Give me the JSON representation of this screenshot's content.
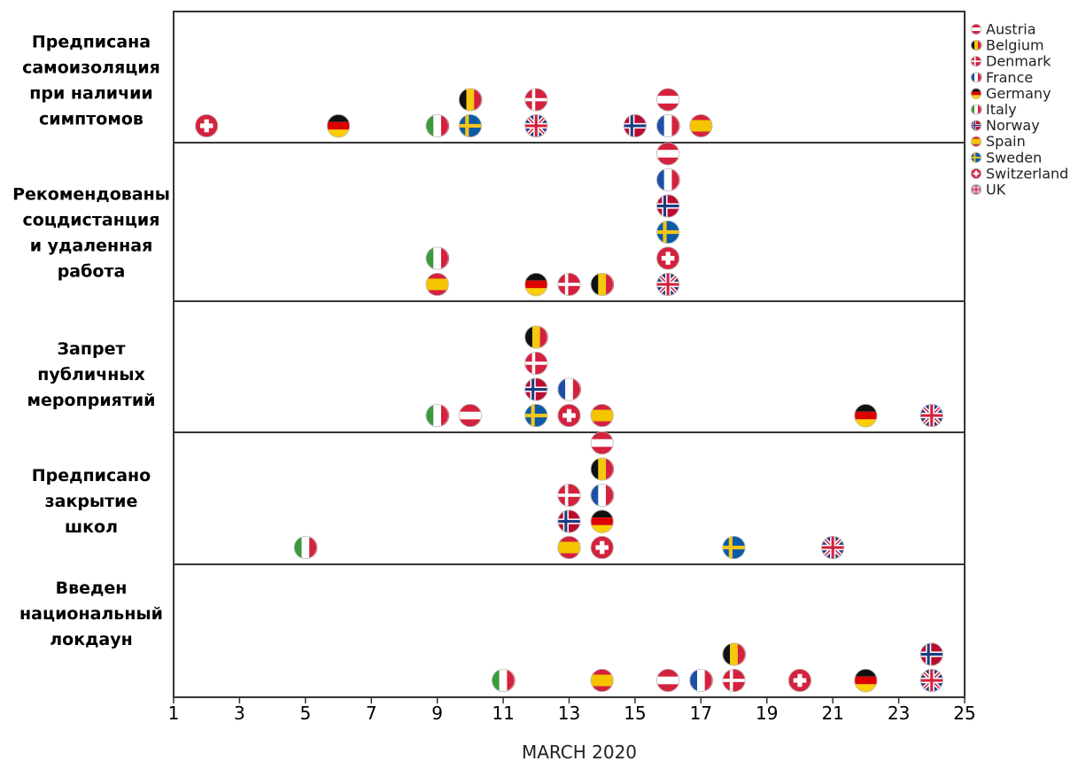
{
  "chart_data": {
    "type": "scatter",
    "title": "",
    "xlabel": "MARCH 2020",
    "ylabel": "",
    "xlim": [
      1,
      25
    ],
    "xticks": [
      1,
      3,
      5,
      7,
      9,
      11,
      13,
      15,
      17,
      19,
      21,
      23,
      25
    ],
    "grid": false,
    "legend_position": "right",
    "rows": [
      {
        "label": "Предписана самоизоляция при наличии симптомов",
        "lines": [
          "Предписана",
          "самоизоляция",
          "при наличии",
          "симптомов"
        ]
      },
      {
        "label": "Рекомендованы соцдистанция и удаленная работа",
        "lines": [
          "Рекомендованы",
          "соцдистанция",
          "и удаленная",
          "работа"
        ]
      },
      {
        "label": "Запрет публичных мероприятий",
        "lines": [
          "Запрет",
          "публичных",
          "мероприятий"
        ]
      },
      {
        "label": "Предписано закрытие школ",
        "lines": [
          "Предписано",
          "закрытие",
          "школ"
        ]
      },
      {
        "label": "Введен национальный локдаун",
        "lines": [
          "Введен",
          "национальный",
          "локдаун"
        ]
      }
    ],
    "countries": [
      "Austria",
      "Belgium",
      "Denmark",
      "France",
      "Germany",
      "Italy",
      "Norway",
      "Spain",
      "Sweden",
      "Switzerland",
      "UK"
    ],
    "points": [
      {
        "row": 0,
        "day": 2,
        "country": "Switzerland"
      },
      {
        "row": 0,
        "day": 6,
        "country": "Germany"
      },
      {
        "row": 0,
        "day": 9,
        "country": "Italy"
      },
      {
        "row": 0,
        "day": 10,
        "country": "Sweden"
      },
      {
        "row": 0,
        "day": 10,
        "country": "Belgium"
      },
      {
        "row": 0,
        "day": 12,
        "country": "UK"
      },
      {
        "row": 0,
        "day": 12,
        "country": "Denmark"
      },
      {
        "row": 0,
        "day": 15,
        "country": "Norway"
      },
      {
        "row": 0,
        "day": 16,
        "country": "France"
      },
      {
        "row": 0,
        "day": 16,
        "country": "Austria"
      },
      {
        "row": 0,
        "day": 17,
        "country": "Spain"
      },
      {
        "row": 1,
        "day": 9,
        "country": "Spain"
      },
      {
        "row": 1,
        "day": 9,
        "country": "Italy"
      },
      {
        "row": 1,
        "day": 12,
        "country": "Germany"
      },
      {
        "row": 1,
        "day": 13,
        "country": "Denmark"
      },
      {
        "row": 1,
        "day": 14,
        "country": "Belgium"
      },
      {
        "row": 1,
        "day": 16,
        "country": "UK"
      },
      {
        "row": 1,
        "day": 16,
        "country": "Switzerland"
      },
      {
        "row": 1,
        "day": 16,
        "country": "Sweden"
      },
      {
        "row": 1,
        "day": 16,
        "country": "Norway"
      },
      {
        "row": 1,
        "day": 16,
        "country": "France"
      },
      {
        "row": 1,
        "day": 16,
        "country": "Austria"
      },
      {
        "row": 2,
        "day": 9,
        "country": "Italy"
      },
      {
        "row": 2,
        "day": 10,
        "country": "Austria"
      },
      {
        "row": 2,
        "day": 12,
        "country": "Sweden"
      },
      {
        "row": 2,
        "day": 12,
        "country": "Norway"
      },
      {
        "row": 2,
        "day": 12,
        "country": "Denmark"
      },
      {
        "row": 2,
        "day": 12,
        "country": "Belgium"
      },
      {
        "row": 2,
        "day": 13,
        "country": "Switzerland"
      },
      {
        "row": 2,
        "day": 13,
        "country": "France"
      },
      {
        "row": 2,
        "day": 14,
        "country": "Spain"
      },
      {
        "row": 2,
        "day": 22,
        "country": "Germany"
      },
      {
        "row": 2,
        "day": 24,
        "country": "UK"
      },
      {
        "row": 3,
        "day": 5,
        "country": "Italy"
      },
      {
        "row": 3,
        "day": 13,
        "country": "Spain"
      },
      {
        "row": 3,
        "day": 13,
        "country": "Norway"
      },
      {
        "row": 3,
        "day": 13,
        "country": "Denmark"
      },
      {
        "row": 3,
        "day": 14,
        "country": "Switzerland"
      },
      {
        "row": 3,
        "day": 14,
        "country": "Germany"
      },
      {
        "row": 3,
        "day": 14,
        "country": "France"
      },
      {
        "row": 3,
        "day": 14,
        "country": "Belgium"
      },
      {
        "row": 3,
        "day": 14,
        "country": "Austria"
      },
      {
        "row": 3,
        "day": 18,
        "country": "Sweden"
      },
      {
        "row": 3,
        "day": 21,
        "country": "UK"
      },
      {
        "row": 4,
        "day": 11,
        "country": "Italy"
      },
      {
        "row": 4,
        "day": 14,
        "country": "Spain"
      },
      {
        "row": 4,
        "day": 16,
        "country": "Austria"
      },
      {
        "row": 4,
        "day": 17,
        "country": "France"
      },
      {
        "row": 4,
        "day": 18,
        "country": "Denmark"
      },
      {
        "row": 4,
        "day": 18,
        "country": "Belgium"
      },
      {
        "row": 4,
        "day": 20,
        "country": "Switzerland"
      },
      {
        "row": 4,
        "day": 22,
        "country": "Germany"
      },
      {
        "row": 4,
        "day": 24,
        "country": "UK"
      },
      {
        "row": 4,
        "day": 24,
        "country": "Norway"
      }
    ]
  },
  "colors": {
    "frame": "#333333",
    "red": "#d4213d",
    "white": "#ffffff",
    "black": "#111111",
    "gold": "#f6c90e",
    "blue": "#1f4ea8",
    "green": "#3b9a3e",
    "yellow_es": "#f5c400",
    "blue_se": "#0b5aa6",
    "yellow_se": "#f5c518",
    "navy_uk": "#243a7c",
    "navy_no": "#1d3c82"
  }
}
